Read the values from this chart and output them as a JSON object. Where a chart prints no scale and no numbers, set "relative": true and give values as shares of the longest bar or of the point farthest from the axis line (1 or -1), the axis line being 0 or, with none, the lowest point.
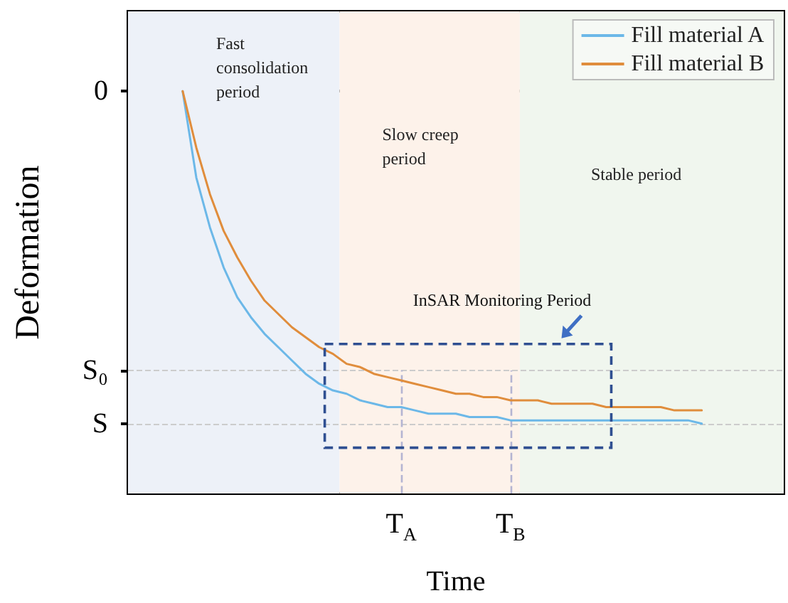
{
  "chart_data": {
    "type": "line",
    "relative": true,
    "xlabel": "Time",
    "ylabel": "Deformation",
    "categories": [
      null,
      null,
      null,
      null,
      null,
      null,
      null,
      null,
      null,
      null,
      null,
      null,
      null,
      null,
      null,
      null,
      null,
      null,
      null,
      null,
      "T$_{A}$",
      null,
      null,
      null,
      null,
      null,
      null,
      null,
      "T$_{B}$",
      null,
      null,
      null,
      null,
      null,
      null,
      null,
      null,
      null,
      null,
      null,
      null,
      null,
      null,
      null,
      null,
      null,
      null,
      null,
      null
    ],
    "series": [
      {
        "name": "Fill material A",
        "color": "#6cb8e8",
        "values": [
          null,
          null,
          null,
          null,
          0,
          -0.26,
          -0.41,
          -0.53,
          -0.62,
          -0.68,
          -0.73,
          -0.77,
          -0.81,
          -0.85,
          -0.88,
          -0.9,
          -0.91,
          -0.93,
          -0.94,
          -0.95,
          -0.95,
          -0.96,
          -0.97,
          -0.97,
          -0.97,
          -0.98,
          -0.98,
          -0.98,
          -0.99,
          -0.99,
          -0.99,
          -0.99,
          -0.99,
          -0.99,
          -0.99,
          -0.99,
          -0.99,
          -0.99,
          -0.99,
          -0.99,
          -0.99,
          -0.99,
          -1,
          null,
          null,
          null,
          null,
          null,
          null
        ]
      },
      {
        "name": "Fill material B",
        "color": "#e08d3c",
        "values": [
          null,
          null,
          null,
          null,
          0,
          -0.17,
          -0.31,
          -0.42,
          -0.5,
          -0.57,
          -0.63,
          -0.67,
          -0.71,
          -0.74,
          -0.77,
          -0.79,
          -0.82,
          -0.83,
          -0.85,
          -0.86,
          -0.87,
          -0.88,
          -0.89,
          -0.9,
          -0.91,
          -0.91,
          -0.92,
          -0.92,
          -0.93,
          -0.93,
          -0.93,
          -0.94,
          -0.94,
          -0.94,
          -0.94,
          -0.95,
          -0.95,
          -0.95,
          -0.95,
          -0.95,
          -0.96,
          -0.96,
          -0.96,
          null,
          null,
          null,
          null,
          null,
          null
        ]
      }
    ],
    "ref_lines": [
      {
        "axis": "y",
        "value": -0.84,
        "label": "S₀",
        "color": "#cccccc",
        "line_style": "dashed"
      },
      {
        "axis": "y",
        "value": -1,
        "label": "S",
        "color": "#cccccc",
        "line_style": "dashed"
      },
      {
        "axis": "x",
        "value": "T$_{A}$",
        "color": "#b4b4d2",
        "line_style": "dashed"
      },
      {
        "axis": "x",
        "value": "T$_{B}$",
        "color": "#b4b4d2",
        "line_style": "dashed"
      }
    ],
    "annotations": [
      "0",
      "InSAR Monitoring Period",
      "Fast consolidation period",
      "Slow creep period",
      "Stable period"
    ],
    "legend": "top right",
    "marker": "none",
    "line_style": "solid"
  }
}
